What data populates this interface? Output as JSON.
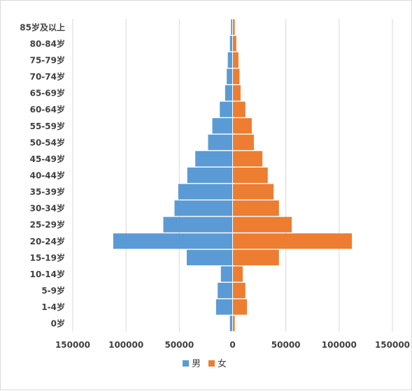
{
  "chart_data": {
    "type": "bar",
    "orientation": "horizontal",
    "categories": [
      "0岁",
      "1-4岁",
      "5-9岁",
      "10-14岁",
      "15-19岁",
      "20-24岁",
      "25-29岁",
      "30-34岁",
      "35-39岁",
      "40-44岁",
      "45-49岁",
      "50-54岁",
      "55-59岁",
      "60-64岁",
      "65-69岁",
      "70-74岁",
      "75-79岁",
      "80-84岁",
      "85岁及以上"
    ],
    "series": [
      {
        "name": "男",
        "color": "#5b9bd5",
        "values": [
          2500,
          15500,
          14000,
          11000,
          43000,
          112000,
          65000,
          54500,
          51000,
          42500,
          35000,
          23000,
          19000,
          12000,
          7000,
          5500,
          4500,
          2500,
          1500
        ]
      },
      {
        "name": "女",
        "color": "#ed7d31",
        "values": [
          2000,
          13500,
          12000,
          9500,
          43500,
          112000,
          55500,
          43500,
          38500,
          33000,
          28000,
          20000,
          18000,
          12000,
          7500,
          6500,
          5500,
          3500,
          2000
        ]
      }
    ],
    "xlim": [
      -150000,
      150000
    ],
    "xticks": [
      "150000",
      "100000",
      "50000",
      "0",
      "50000",
      "100000",
      "150000"
    ],
    "grid": true,
    "legend_position": "bottom",
    "title": "",
    "xlabel": "",
    "ylabel": ""
  }
}
